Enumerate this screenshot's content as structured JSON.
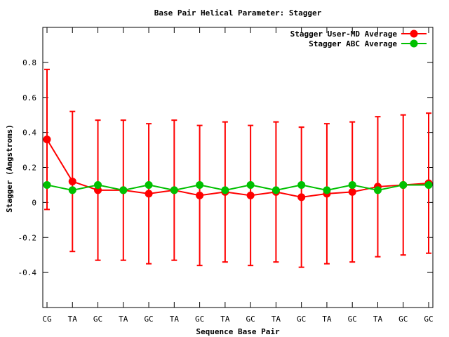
{
  "chart_data": {
    "type": "line",
    "title": "Base Pair Helical Parameter: Stagger",
    "xlabel": "Sequence Base Pair",
    "ylabel": "Stagger (Angstroms)",
    "categories": [
      "CG",
      "TA",
      "GC",
      "TA",
      "GC",
      "TA",
      "GC",
      "TA",
      "GC",
      "TA",
      "GC",
      "TA",
      "GC",
      "TA",
      "GC",
      "GC"
    ],
    "ylim": [
      -0.6,
      1.0
    ],
    "yticks": [
      -0.4,
      -0.2,
      0,
      0.2,
      0.4,
      0.6,
      0.8
    ],
    "ytick_labels": [
      "-0.4",
      "-0.2",
      "0",
      "0.2",
      "0.4",
      "0.6",
      "0.8"
    ],
    "grid": false,
    "legend_position": "top-right",
    "series": [
      {
        "name": "Stagger User-MD Average",
        "color": "#ff0000",
        "values": [
          0.36,
          0.12,
          0.07,
          0.07,
          0.05,
          0.07,
          0.04,
          0.06,
          0.04,
          0.06,
          0.03,
          0.05,
          0.06,
          0.09,
          0.1,
          0.11
        ],
        "error_low": [
          -0.04,
          -0.28,
          -0.33,
          -0.33,
          -0.35,
          -0.33,
          -0.36,
          -0.34,
          -0.36,
          -0.34,
          -0.37,
          -0.35,
          -0.34,
          -0.31,
          -0.3,
          -0.29
        ],
        "error_high": [
          0.76,
          0.52,
          0.47,
          0.47,
          0.45,
          0.47,
          0.44,
          0.46,
          0.44,
          0.46,
          0.43,
          0.45,
          0.46,
          0.49,
          0.5,
          0.51
        ]
      },
      {
        "name": "Stagger ABC Average",
        "color": "#00c000",
        "values": [
          0.1,
          0.07,
          0.1,
          0.07,
          0.1,
          0.07,
          0.1,
          0.07,
          0.1,
          0.07,
          0.1,
          0.07,
          0.1,
          0.07,
          0.1,
          0.1
        ]
      }
    ]
  }
}
